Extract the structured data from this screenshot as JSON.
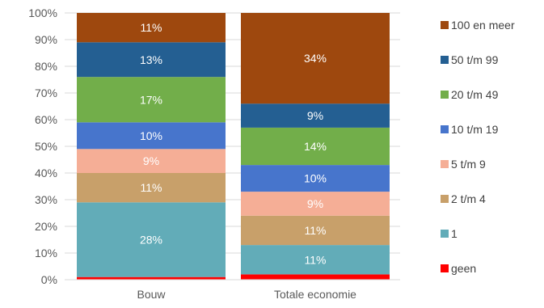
{
  "chart_data": {
    "type": "bar",
    "stacked": true,
    "normalized": true,
    "categories": [
      "Bouw",
      "Totale economie"
    ],
    "ylim": [
      0,
      100
    ],
    "yticks": [
      "0%",
      "10%",
      "20%",
      "30%",
      "40%",
      "50%",
      "60%",
      "70%",
      "80%",
      "90%",
      "100%"
    ],
    "grid": true,
    "legend_position": "right",
    "series": [
      {
        "name": "geen",
        "color": "#ff0000",
        "values": [
          1,
          2
        ],
        "labels": [
          "",
          ""
        ]
      },
      {
        "name": "1",
        "color": "#62acb8",
        "values": [
          28,
          11
        ],
        "labels": [
          "28%",
          "11%"
        ]
      },
      {
        "name": "2 t/m 4",
        "color": "#c8a06a",
        "values": [
          11,
          11
        ],
        "labels": [
          "11%",
          "11%"
        ]
      },
      {
        "name": "5 t/m 9",
        "color": "#f5ae96",
        "values": [
          9,
          9
        ],
        "labels": [
          "9%",
          "9%"
        ]
      },
      {
        "name": "10 t/m 19",
        "color": "#4775cc",
        "values": [
          10,
          10
        ],
        "labels": [
          "10%",
          "10%"
        ]
      },
      {
        "name": "20 t/m 49",
        "color": "#72ae4a",
        "values": [
          17,
          14
        ],
        "labels": [
          "17%",
          "14%"
        ]
      },
      {
        "name": "50 t/m 99",
        "color": "#245f92",
        "values": [
          13,
          9
        ],
        "labels": [
          "13%",
          "9%"
        ]
      },
      {
        "name": "100 en meer",
        "color": "#9e480e",
        "values": [
          11,
          34
        ],
        "labels": [
          "11%",
          "34%"
        ]
      }
    ]
  }
}
